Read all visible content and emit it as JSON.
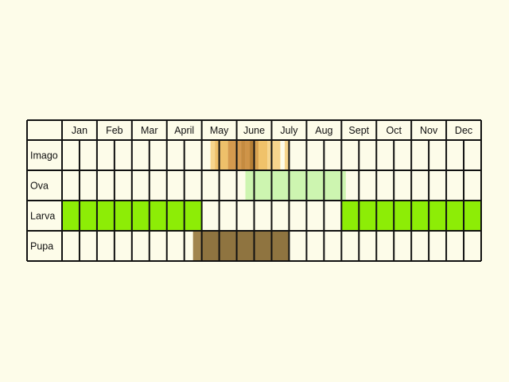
{
  "chart_data": {
    "type": "table",
    "months": [
      "Jan",
      "Feb",
      "Mar",
      "April",
      "May",
      "June",
      "July",
      "Aug",
      "Sept",
      "Oct",
      "Nov",
      "Dec"
    ],
    "cells_per_month": 2,
    "stages": [
      {
        "name": "Imago",
        "spans": [
          {
            "start": 8.5,
            "end": 8.75,
            "color": "#f6d58d"
          },
          {
            "start": 8.75,
            "end": 9.5,
            "color": "#eec06a"
          },
          {
            "start": 9.5,
            "end": 10.25,
            "color": "#d59a4e"
          },
          {
            "start": 10.25,
            "end": 10.5,
            "color": "#c58b40"
          },
          {
            "start": 10.5,
            "end": 10.75,
            "color": "#cf9448"
          },
          {
            "start": 10.75,
            "end": 11.0,
            "color": "#b57f34"
          },
          {
            "start": 11.0,
            "end": 11.25,
            "color": "#d9a451"
          },
          {
            "start": 11.25,
            "end": 11.75,
            "color": "#f0c26a"
          },
          {
            "start": 11.75,
            "end": 12.5,
            "color": "#f6d58d"
          },
          {
            "start": 12.75,
            "end": 13.0,
            "color": "#f6d58d"
          }
        ]
      },
      {
        "name": "Ova",
        "spans": [
          {
            "start": 10.5,
            "end": 16.25,
            "color": "#cdf5b0"
          }
        ]
      },
      {
        "name": "Larva",
        "spans": [
          {
            "start": 0,
            "end": 8,
            "color": "#8ded06"
          },
          {
            "start": 16,
            "end": 24,
            "color": "#8ded06"
          }
        ]
      },
      {
        "name": "Pupa",
        "spans": [
          {
            "start": 7.5,
            "end": 8.0,
            "color": "#a0844d"
          },
          {
            "start": 8.0,
            "end": 13.0,
            "color": "#8f7440"
          }
        ]
      }
    ]
  }
}
